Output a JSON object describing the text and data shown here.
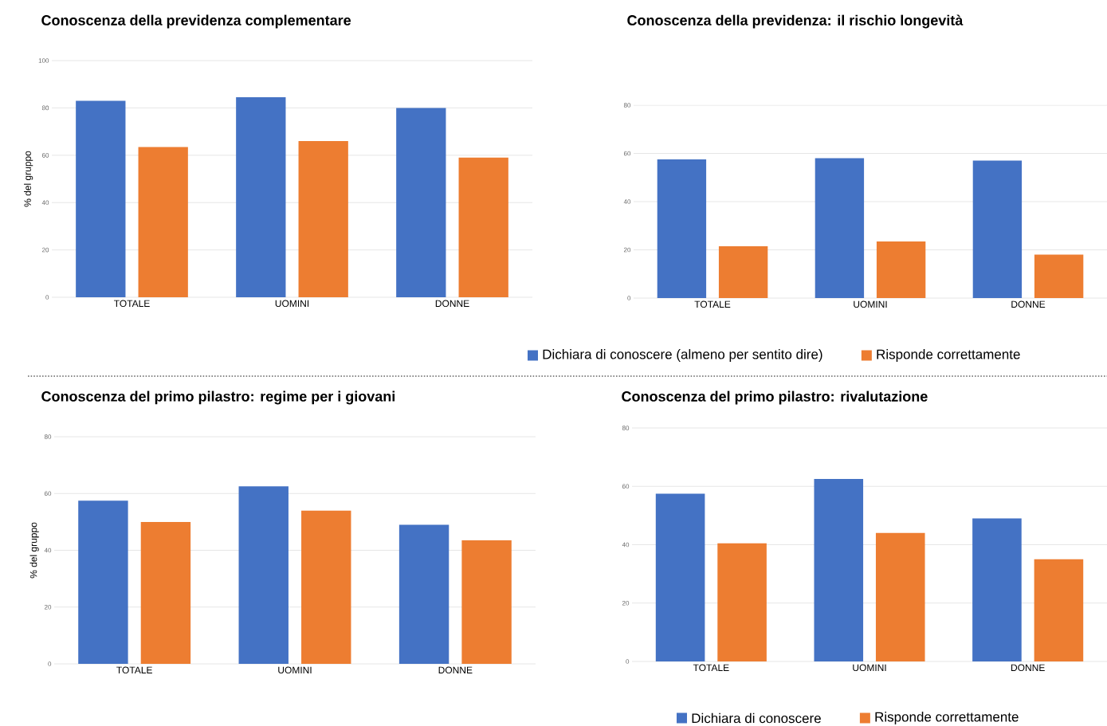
{
  "chart_data": [
    {
      "type": "bar",
      "title": "Conoscenza della previdenza complementare",
      "ylabel": "% del gruppo",
      "categories": [
        "TOTALE",
        "UOMINI",
        "DONNE"
      ],
      "series": [
        {
          "color": "#4472c4",
          "values": [
            83,
            84.5,
            80
          ]
        },
        {
          "color": "#ed7d31",
          "values": [
            63.5,
            66,
            59
          ]
        }
      ],
      "ylim": [
        0,
        100
      ],
      "yticks": [
        0,
        20,
        40,
        60,
        80,
        100
      ],
      "grid": "y"
    },
    {
      "type": "bar",
      "title": "Conoscenza della previdenza: il rischio longevità",
      "categories": [
        "TOTALE",
        "UOMINI",
        "DONNE"
      ],
      "series": [
        {
          "name": "Dichiara di conoscere (almeno per sentito dire)",
          "color": "#4472c4",
          "values": [
            57.5,
            58,
            57
          ]
        },
        {
          "name": "Risponde correttamente",
          "color": "#ed7d31",
          "values": [
            21.5,
            23.5,
            18
          ]
        }
      ],
      "ylim": [
        0,
        80
      ],
      "yticks": [
        0,
        20,
        40,
        60,
        80
      ],
      "grid": "y",
      "legend": "bottom"
    },
    {
      "type": "bar",
      "title": "Conoscenza del primo pilastro: regime per i giovani",
      "ylabel": "% del gruppo",
      "categories": [
        "TOTALE",
        "UOMINI",
        "DONNE"
      ],
      "series": [
        {
          "color": "#4472c4",
          "values": [
            57.5,
            62.5,
            49
          ]
        },
        {
          "color": "#ed7d31",
          "values": [
            50,
            54,
            43.5
          ]
        }
      ],
      "ylim": [
        0,
        80
      ],
      "yticks": [
        0,
        20,
        40,
        60,
        80
      ],
      "grid": "y"
    },
    {
      "type": "bar",
      "title": "Conoscenza del primo pilastro: rivalutazione",
      "categories": [
        "TOTALE",
        "UOMINI",
        "DONNE"
      ],
      "series": [
        {
          "name": "Dichiara di conoscere",
          "color": "#4472c4",
          "values": [
            57.5,
            62.5,
            49
          ]
        },
        {
          "name": "Risponde correttamente",
          "color": "#ed7d31",
          "values": [
            40.5,
            44,
            35
          ]
        }
      ],
      "ylim": [
        0,
        80
      ],
      "yticks": [
        0,
        20,
        40,
        60,
        80
      ],
      "grid": "y",
      "legend": "bottom"
    }
  ]
}
